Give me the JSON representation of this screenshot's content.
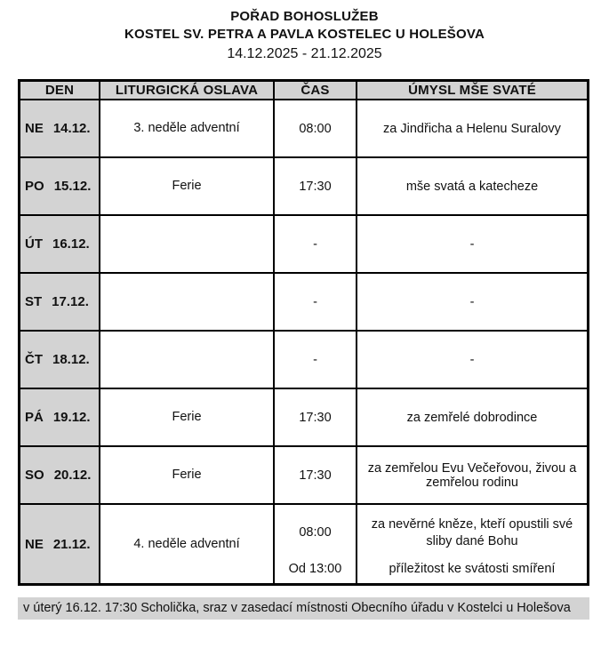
{
  "header": {
    "title": "POŘAD BOHOSLUŽEB",
    "subtitle": "KOSTEL SV. PETRA A PAVLA KOSTELEC U HOLEŠOVA",
    "date_range": "14.12.2025 - 21.12.2025"
  },
  "table": {
    "columns": [
      "DEN",
      "LITURGICKÁ OSLAVA",
      "ČAS",
      "ÚMYSL MŠE SVATÉ"
    ],
    "rows": [
      {
        "day": "NE",
        "date": "14.12.",
        "celebration": "3. neděle adventní",
        "entries": [
          {
            "time": "08:00",
            "intention": "za Jindřicha a Helenu Suralovy"
          }
        ]
      },
      {
        "day": "PO",
        "date": "15.12.",
        "celebration": "Ferie",
        "entries": [
          {
            "time": "17:30",
            "intention": "mše svatá a katecheze"
          }
        ]
      },
      {
        "day": "ÚT",
        "date": "16.12.",
        "celebration": "",
        "entries": [
          {
            "time": "-",
            "intention": "-"
          }
        ]
      },
      {
        "day": "ST",
        "date": "17.12.",
        "celebration": "",
        "entries": [
          {
            "time": "-",
            "intention": "-"
          }
        ]
      },
      {
        "day": "ČT",
        "date": "18.12.",
        "celebration": "",
        "entries": [
          {
            "time": "-",
            "intention": "-"
          }
        ]
      },
      {
        "day": "PÁ",
        "date": "19.12.",
        "celebration": "Ferie",
        "entries": [
          {
            "time": "17:30",
            "intention": "za zemřelé dobrodince"
          }
        ]
      },
      {
        "day": "SO",
        "date": "20.12.",
        "celebration": "Ferie",
        "entries": [
          {
            "time": "17:30",
            "intention": "za zemřelou Evu Večeřovou, živou a zemřelou rodinu"
          }
        ]
      },
      {
        "day": "NE",
        "date": "21.12.",
        "celebration": "4. neděle adventní",
        "entries": [
          {
            "time": "08:00",
            "intention": "za nevěrné kněze, kteří opustili své sliby dané Bohu"
          },
          {
            "time": "Od 13:00",
            "intention": "příležitost ke svátosti smíření"
          }
        ]
      }
    ]
  },
  "footer": {
    "note": "v úterý 16.12. 17:30 Scholička, sraz v zasedací místnosti Obecního úřadu v Kostelci u Holešova"
  },
  "colors": {
    "cell_gray": "#d3d3d3",
    "border": "#000000",
    "text": "#111111",
    "background": "#ffffff"
  }
}
